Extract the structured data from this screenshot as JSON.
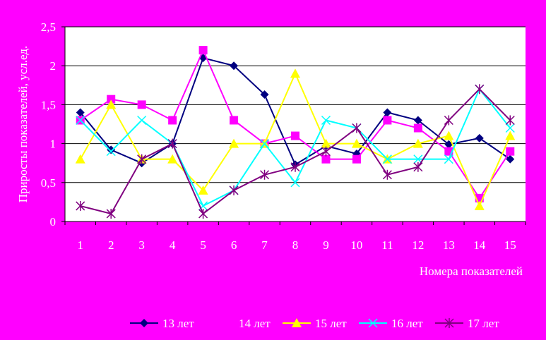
{
  "chart_data": {
    "type": "line",
    "title": "",
    "xlabel": "Номера показателей",
    "ylabel": "Приросты показателей, усл.ед.",
    "categories": [
      "1",
      "2",
      "3",
      "4",
      "5",
      "6",
      "7",
      "8",
      "9",
      "10",
      "11",
      "12",
      "13",
      "14",
      "15"
    ],
    "y_ticks": [
      "0",
      "0,5",
      "1",
      "1,5",
      "2",
      "2,5"
    ],
    "ylim": [
      0,
      2.5
    ],
    "grid": true,
    "legend": "bottom",
    "colors": {
      "background": "#FF00FF",
      "plot_area": "#FFFFFF",
      "text": "#FFFFFF"
    },
    "series": [
      {
        "name": "13 лет",
        "color": "#000080",
        "marker": "diamond",
        "values": [
          1.4,
          0.92,
          0.75,
          1.0,
          2.1,
          2.0,
          1.63,
          0.73,
          0.97,
          0.87,
          1.4,
          1.3,
          0.99,
          1.07,
          0.8
        ]
      },
      {
        "name": "14 лет",
        "color": "#FF00FF",
        "marker": "square",
        "values": [
          1.3,
          1.57,
          1.5,
          1.3,
          2.2,
          1.3,
          1.0,
          1.1,
          0.8,
          0.8,
          1.3,
          1.2,
          0.9,
          0.3,
          0.9
        ]
      },
      {
        "name": "15 лет",
        "color": "#FFFF00",
        "marker": "triangle",
        "values": [
          0.8,
          1.5,
          0.8,
          0.8,
          0.4,
          1.0,
          1.0,
          1.9,
          1.0,
          1.0,
          0.8,
          1.0,
          1.1,
          0.2,
          1.1
        ]
      },
      {
        "name": "16 лет",
        "color": "#00FFFF",
        "marker": "x",
        "values": [
          1.3,
          0.9,
          1.3,
          1.0,
          0.2,
          0.4,
          1.0,
          0.5,
          1.3,
          1.2,
          0.8,
          0.8,
          0.8,
          1.7,
          1.2
        ]
      },
      {
        "name": "17 лет",
        "color": "#800080",
        "marker": "star",
        "values": [
          0.2,
          0.1,
          0.8,
          1.0,
          0.1,
          0.4,
          0.6,
          0.7,
          0.9,
          1.2,
          0.6,
          0.7,
          1.3,
          1.7,
          1.3
        ]
      }
    ]
  }
}
